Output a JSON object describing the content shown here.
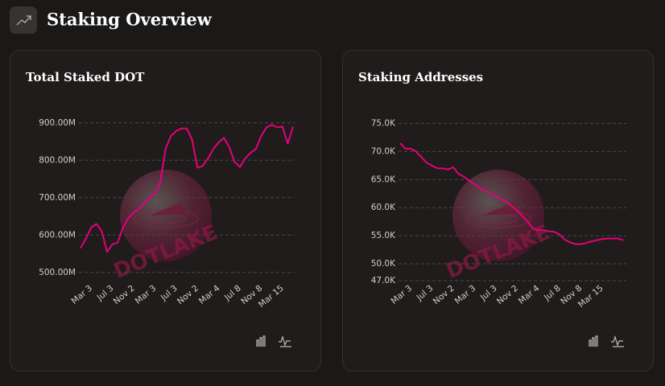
{
  "header": {
    "title": "Staking Overview"
  },
  "watermark": "DOTLAKE",
  "chart_data": [
    {
      "type": "line",
      "title": "Total Staked DOT",
      "color": "#e6007a",
      "grid": true,
      "categories": [
        null,
        null,
        "Mar 3",
        null,
        null,
        null,
        "Jul 3",
        null,
        null,
        null,
        "Nov 2",
        null,
        null,
        null,
        "Mar 3",
        null,
        null,
        null,
        "Jul 3",
        null,
        null,
        null,
        "Nov 2",
        null,
        null,
        null,
        "Mar 4",
        null,
        null,
        null,
        "Jul 8",
        null,
        null,
        null,
        "Nov 8",
        null,
        null,
        null,
        "Mar 15",
        null,
        null
      ],
      "values": [
        565000000,
        590000000,
        620000000,
        630000000,
        610000000,
        555000000,
        575000000,
        580000000,
        620000000,
        645000000,
        660000000,
        670000000,
        685000000,
        700000000,
        710000000,
        740000000,
        830000000,
        865000000,
        878000000,
        885000000,
        885000000,
        855000000,
        780000000,
        785000000,
        805000000,
        830000000,
        848000000,
        860000000,
        835000000,
        795000000,
        782000000,
        805000000,
        820000000,
        830000000,
        865000000,
        888000000,
        895000000,
        888000000,
        890000000,
        845000000,
        890000000
      ],
      "ylim": [
        478000000,
        906000000
      ],
      "yticks": [
        {
          "value": 500000000,
          "label": "500.00M"
        },
        {
          "value": 600000000,
          "label": "600.00M"
        },
        {
          "value": 700000000,
          "label": "700.00M"
        },
        {
          "value": 800000000,
          "label": "800.00M"
        },
        {
          "value": 900000000,
          "label": "900.00M"
        }
      ]
    },
    {
      "type": "line",
      "title": "Staking Addresses",
      "color": "#e6007a",
      "grid": true,
      "categories": [
        null,
        null,
        "Mar 3",
        null,
        null,
        null,
        "Jul 3",
        null,
        null,
        null,
        "Nov 2",
        null,
        null,
        null,
        "Mar 3",
        null,
        null,
        null,
        "Jul 3",
        null,
        null,
        null,
        "Nov 2",
        null,
        null,
        null,
        "Mar 4",
        null,
        null,
        null,
        "Jul 8",
        null,
        null,
        null,
        "Nov 8",
        null,
        null,
        null,
        "Mar 15",
        null,
        null,
        null,
        null
      ],
      "values": [
        71500,
        70500,
        70500,
        70000,
        69000,
        68000,
        67500,
        67000,
        67000,
        66800,
        67200,
        66000,
        65500,
        64800,
        64200,
        63500,
        63000,
        62600,
        62000,
        61500,
        61000,
        60300,
        59500,
        58500,
        57500,
        56300,
        56000,
        56000,
        55800,
        55700,
        55200,
        54300,
        53800,
        53500,
        53500,
        53700,
        54000,
        54200,
        54400,
        54500,
        54500,
        54500,
        54200
      ],
      "ylim": [
        47000,
        75500
      ],
      "yticks": [
        {
          "value": 47000,
          "label": "47.0K"
        },
        {
          "value": 50000,
          "label": "50.0K"
        },
        {
          "value": 55000,
          "label": "55.0K"
        },
        {
          "value": 60000,
          "label": "60.0K"
        },
        {
          "value": 65000,
          "label": "65.0K"
        },
        {
          "value": 70000,
          "label": "70.0K"
        },
        {
          "value": 75000,
          "label": "75.0K"
        }
      ]
    }
  ]
}
